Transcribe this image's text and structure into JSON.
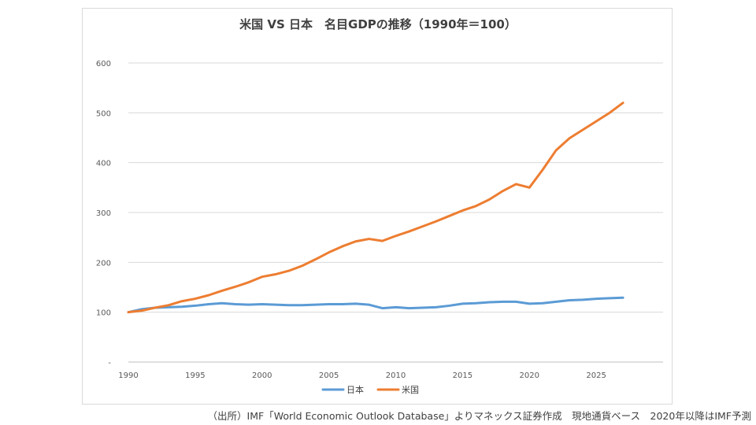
{
  "chart_data": {
    "type": "line",
    "title": "米国 VS 日本　名目GDPの推移（1990年＝100）",
    "xlabel": "",
    "ylabel": "",
    "xlim": [
      1990,
      2030
    ],
    "ylim": [
      0,
      600
    ],
    "y_ticks": [
      "-",
      "100",
      "200",
      "300",
      "400",
      "500",
      "600"
    ],
    "x_ticks": [
      "1990",
      "1995",
      "2000",
      "2005",
      "2010",
      "2015",
      "2020",
      "2025"
    ],
    "grid": "horizontal",
    "legend_position": "bottom",
    "x": [
      1990,
      1991,
      1992,
      1993,
      1994,
      1995,
      1996,
      1997,
      1998,
      1999,
      2000,
      2001,
      2002,
      2003,
      2004,
      2005,
      2006,
      2007,
      2008,
      2009,
      2010,
      2011,
      2012,
      2013,
      2014,
      2015,
      2016,
      2017,
      2018,
      2019,
      2020,
      2021,
      2022,
      2023,
      2024,
      2025,
      2026,
      2027
    ],
    "series": [
      {
        "name": "日本",
        "color": "#5b9bd5",
        "values": [
          100,
          106,
          109,
          110,
          111,
          113,
          116,
          118,
          116,
          115,
          116,
          115,
          114,
          114,
          115,
          116,
          116,
          117,
          115,
          108,
          110,
          108,
          109,
          110,
          113,
          117,
          118,
          120,
          121,
          121,
          117,
          118,
          121,
          124,
          125,
          127,
          128,
          129
        ]
      },
      {
        "name": "米国",
        "color": "#ed7d31",
        "values": [
          100,
          103,
          109,
          114,
          122,
          127,
          134,
          143,
          151,
          160,
          171,
          176,
          183,
          193,
          206,
          220,
          232,
          242,
          247,
          243,
          253,
          262,
          272,
          282,
          293,
          304,
          313,
          326,
          343,
          357,
          350,
          386,
          425,
          449,
          466,
          483,
          500,
          520
        ]
      }
    ]
  },
  "source_note": "（出所）IMF「World Economic Outlook Database」よりマネックス証券作成　現地通貨ベース　2020年以降はIMF予測"
}
